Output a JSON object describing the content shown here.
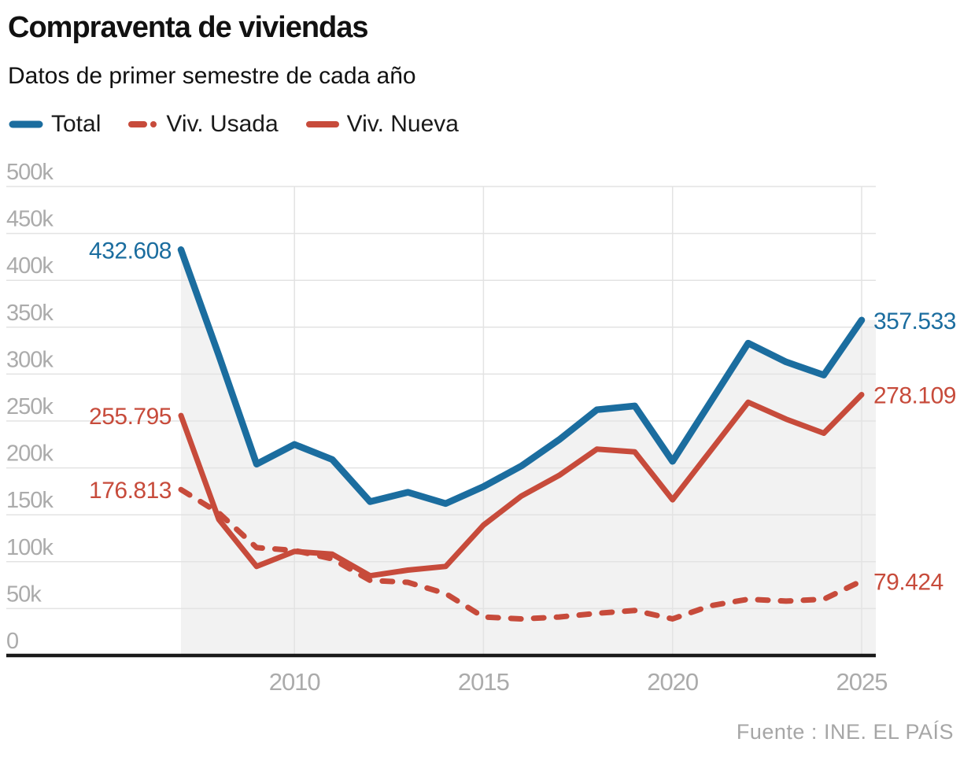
{
  "header": {
    "title": "Compraventa de viviendas",
    "subtitle": "Datos de primer semestre de cada año"
  },
  "legend": [
    {
      "label": "Total",
      "style": "solid",
      "color": "#1b6d9f"
    },
    {
      "label": "Viv. Usada",
      "style": "dashed",
      "color": "#c74b3b"
    },
    {
      "label": "Viv. Nueva",
      "style": "solid",
      "color": "#c74b3b"
    }
  ],
  "source": "Fuente : INE. EL PAÍS",
  "colors": {
    "total": "#1b6d9f",
    "usada": "#c74b3b",
    "nueva": "#c74b3b",
    "area_fill": "#f2f2f2",
    "gridline": "#e3e3e3",
    "axis": "#1a1a1a",
    "tick_label": "#ababab"
  },
  "chart_data": {
    "type": "line",
    "title": "Compraventa de viviendas",
    "subtitle": "Datos de primer semestre de cada año",
    "x": [
      2007,
      2008,
      2009,
      2010,
      2011,
      2012,
      2013,
      2014,
      2015,
      2016,
      2017,
      2018,
      2019,
      2020,
      2021,
      2022,
      2023,
      2024,
      2025
    ],
    "series": [
      {
        "id": "nueva",
        "name": "Viv. Nueva",
        "color": "#c74b3b",
        "dash": false,
        "values": [
          255795,
          145000,
          95000,
          111000,
          108000,
          85000,
          91000,
          95000,
          139000,
          170000,
          192000,
          220000,
          217000,
          166000,
          218000,
          270000,
          252000,
          237000,
          278109
        ]
      },
      {
        "id": "usada",
        "name": "Viv. Usada",
        "color": "#c74b3b",
        "dash": true,
        "values": [
          176813,
          152000,
          115000,
          112000,
          103000,
          80000,
          78000,
          66000,
          41000,
          39000,
          41000,
          45000,
          48000,
          39000,
          53000,
          60000,
          58000,
          60000,
          79424
        ]
      },
      {
        "id": "total",
        "name": "Total",
        "color": "#1b6d9f",
        "dash": false,
        "area": true,
        "values": [
          432608,
          320000,
          204000,
          225000,
          209000,
          164000,
          174000,
          162000,
          180000,
          202000,
          230000,
          262000,
          266000,
          207000,
          270000,
          333000,
          313000,
          299000,
          357533
        ]
      }
    ],
    "ylim": [
      0,
      500000
    ],
    "ytick_step": 50000,
    "ytick_labels": [
      "0",
      "50k",
      "100k",
      "150k",
      "200k",
      "250k",
      "300k",
      "350k",
      "400k",
      "450k",
      "500k"
    ],
    "xticks": [
      2010,
      2015,
      2020,
      2025
    ],
    "xtick_labels": [
      "2010",
      "2015",
      "2020",
      "2025"
    ],
    "grid": true,
    "legend_position": "top-left",
    "annotations": [
      {
        "series": "total",
        "year": 2007,
        "text": "432.608",
        "side": "start"
      },
      {
        "series": "total",
        "year": 2025,
        "text": "357.533",
        "side": "end"
      },
      {
        "series": "nueva",
        "year": 2007,
        "text": "255.795",
        "side": "start"
      },
      {
        "series": "nueva",
        "year": 2025,
        "text": "278.109",
        "side": "end"
      },
      {
        "series": "usada",
        "year": 2007,
        "text": "176.813",
        "side": "start"
      },
      {
        "series": "usada",
        "year": 2025,
        "text": "79.424",
        "side": "end"
      }
    ]
  }
}
